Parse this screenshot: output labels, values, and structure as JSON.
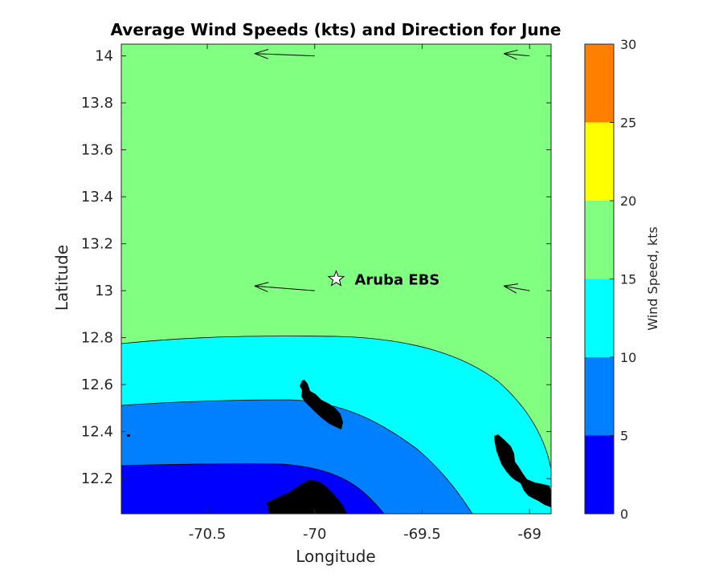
{
  "chart_data": {
    "type": "contour_map",
    "title": "Average Wind Speeds (kts) and Direction for June",
    "xlabel": "Longitude",
    "ylabel": "Latitude",
    "xlim": [
      -70.9,
      -68.9
    ],
    "ylim": [
      12.05,
      14.05
    ],
    "x_ticks": [
      -70.5,
      -70,
      -69.5,
      -69
    ],
    "x_tick_labels": [
      "-70.5",
      "-70",
      "-69.5",
      "-69"
    ],
    "y_ticks": [
      12.2,
      12.4,
      12.6,
      12.8,
      13,
      13.2,
      13.4,
      13.6,
      13.8,
      14
    ],
    "y_tick_labels": [
      "12.2",
      "12.4",
      "12.6",
      "12.8",
      "13",
      "13.2",
      "13.4",
      "13.6",
      "13.8",
      "14"
    ],
    "colorbar": {
      "label": "Wind Speed, kts",
      "min": 0,
      "max": 30,
      "ticks": [
        0,
        5,
        10,
        15,
        20,
        25,
        30
      ],
      "tick_labels": [
        "0",
        "5",
        "10",
        "15",
        "20",
        "25",
        "30"
      ],
      "bands": [
        {
          "from": 0,
          "to": 5,
          "color": "#0000ff"
        },
        {
          "from": 5,
          "to": 10,
          "color": "#0080ff"
        },
        {
          "from": 10,
          "to": 15,
          "color": "#00ffff"
        },
        {
          "from": 15,
          "to": 20,
          "color": "#80ff80"
        },
        {
          "from": 20,
          "to": 25,
          "color": "#ffff00"
        },
        {
          "from": 25,
          "to": 30,
          "color": "#ff8000"
        }
      ]
    },
    "wind_vectors": [
      {
        "lon": -70,
        "lat": 14.0,
        "dlon": -0.28,
        "dlat": 0.01
      },
      {
        "lon": -70,
        "lat": 13.0,
        "dlon": -0.28,
        "dlat": 0.02
      },
      {
        "lon": -69,
        "lat": 14.0,
        "dlon": -0.12,
        "dlat": 0.01
      },
      {
        "lon": -69,
        "lat": 13.0,
        "dlon": -0.12,
        "dlat": 0.02
      }
    ],
    "station": {
      "name": "Aruba EBS",
      "lon": -69.9,
      "lat": 13.05,
      "marker": "star"
    },
    "land_color": "#000000"
  }
}
